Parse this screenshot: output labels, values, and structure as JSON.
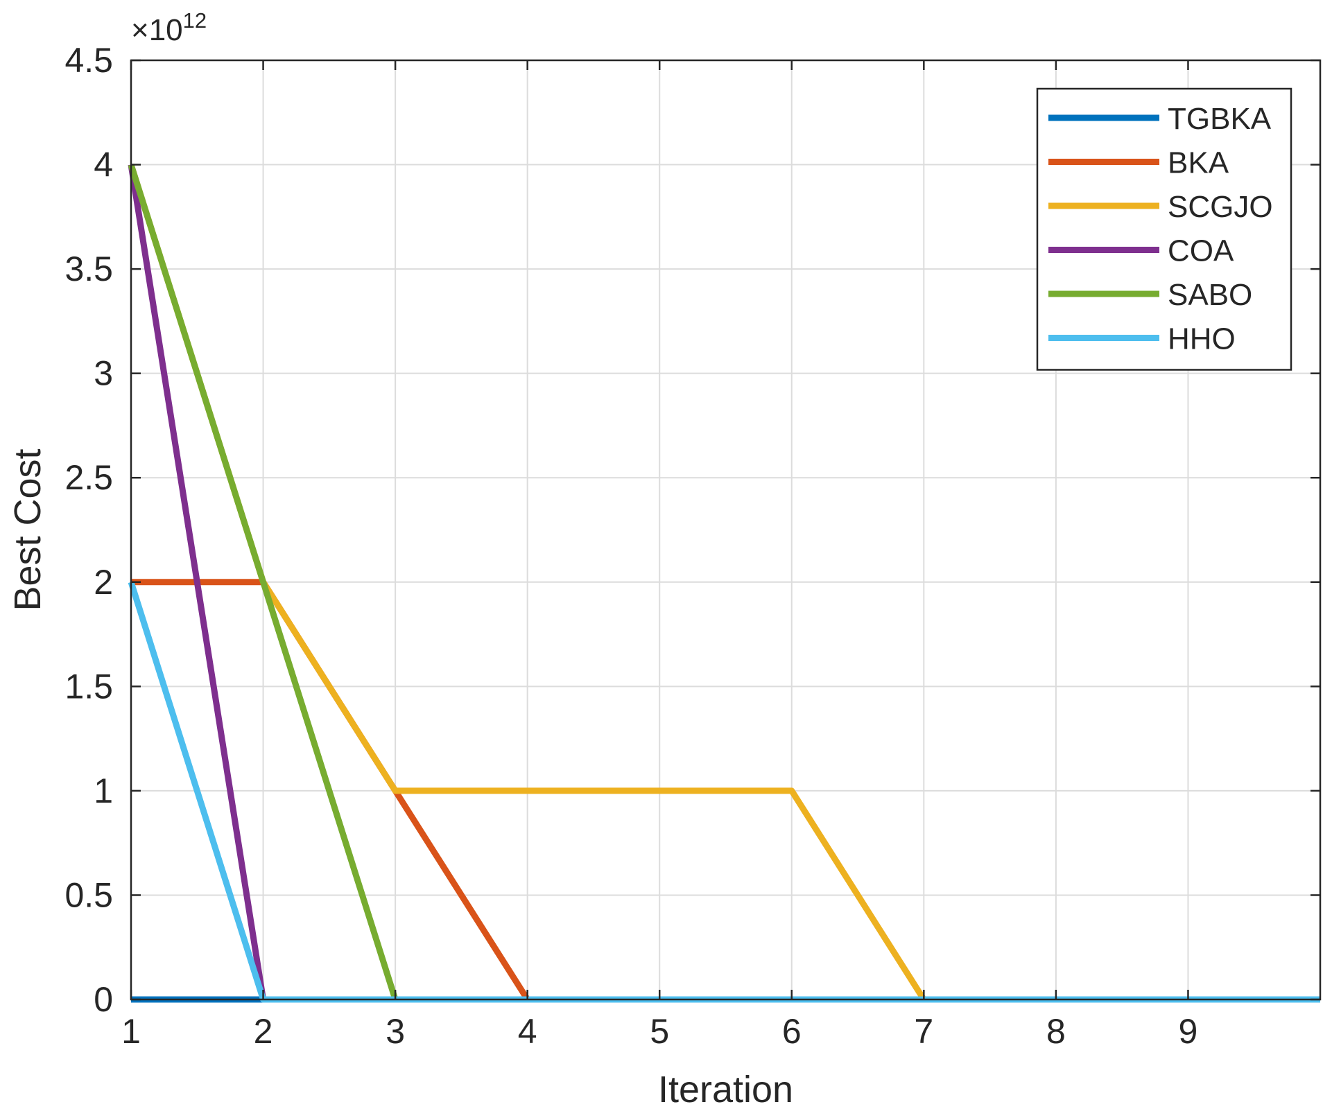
{
  "chart_data": {
    "type": "line",
    "title": "",
    "xlabel": "Iteration",
    "ylabel": "Best Cost",
    "y_exponent_base": "×10",
    "y_exponent_power": "12",
    "xlim": [
      1,
      10
    ],
    "ylim": [
      0,
      4.5
    ],
    "x_ticks": [
      1,
      2,
      3,
      4,
      5,
      6,
      7,
      8,
      9
    ],
    "y_ticks": [
      0,
      0.5,
      1,
      1.5,
      2,
      2.5,
      3,
      3.5,
      4,
      4.5
    ],
    "grid": true,
    "legend_position": "top-right",
    "x": [
      1,
      2,
      3,
      4,
      5,
      6,
      7,
      8,
      9,
      10
    ],
    "series": [
      {
        "name": "TGBKA",
        "color": "#0072BD",
        "values": [
          0,
          0,
          0,
          0,
          0,
          0,
          0,
          0,
          0,
          0
        ]
      },
      {
        "name": "BKA",
        "color": "#D95319",
        "values": [
          2,
          2,
          1,
          0,
          0,
          0,
          0,
          0,
          0,
          0
        ]
      },
      {
        "name": "SCGJO",
        "color": "#EDB120",
        "values": [
          4,
          2,
          1,
          1,
          1,
          1,
          0,
          0,
          0,
          0
        ]
      },
      {
        "name": "COA",
        "color": "#7E2F8E",
        "values": [
          4,
          0,
          0,
          0,
          0,
          0,
          0,
          0,
          0,
          0
        ]
      },
      {
        "name": "SABO",
        "color": "#77AC30",
        "values": [
          4,
          2,
          0,
          0,
          0,
          0,
          0,
          0,
          0,
          0
        ]
      },
      {
        "name": "HHO",
        "color": "#4DBEEE",
        "values": [
          2,
          0,
          0,
          0,
          0,
          0,
          0,
          0,
          0,
          0
        ]
      }
    ]
  }
}
